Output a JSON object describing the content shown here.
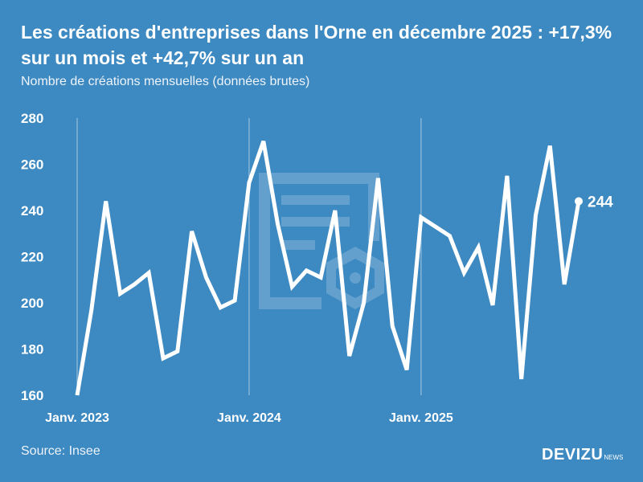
{
  "header": {
    "title": "Les créations d'entreprises dans l'Orne en décembre 2025 : +17,3% sur un mois et +42,7% sur un an",
    "subtitle": "Nombre de créations mensuelles (données brutes)"
  },
  "footer": {
    "source": "Source: Insee",
    "brand": "DEVIZU",
    "brand_suffix": "NEWS"
  },
  "colors": {
    "background": "#3d89c1",
    "line": "#ffffff",
    "gridline": "#a9cbe4"
  },
  "chart_data": {
    "type": "line",
    "title": "Les créations d'entreprises dans l'Orne en décembre 2025 : +17,3% sur un mois et +42,7% sur un an",
    "subtitle": "Nombre de créations mensuelles (données brutes)",
    "xlabel": "",
    "ylabel": "",
    "ylim": [
      160,
      280
    ],
    "yticks": [
      160,
      180,
      200,
      220,
      240,
      260,
      280
    ],
    "xticks": [
      {
        "index": 0,
        "label": "Janv. 2023"
      },
      {
        "index": 12,
        "label": "Janv. 2024"
      },
      {
        "index": 24,
        "label": "Janv. 2025"
      }
    ],
    "x": [
      "2023-01",
      "2023-02",
      "2023-03",
      "2023-04",
      "2023-05",
      "2023-06",
      "2023-07",
      "2023-08",
      "2023-09",
      "2023-10",
      "2023-11",
      "2023-12",
      "2024-01",
      "2024-02",
      "2024-03",
      "2024-04",
      "2024-05",
      "2024-06",
      "2024-07",
      "2024-08",
      "2024-09",
      "2024-10",
      "2024-11",
      "2024-12",
      "2025-01",
      "2025-02",
      "2025-03",
      "2025-04",
      "2025-05",
      "2025-06",
      "2025-07",
      "2025-08",
      "2025-09",
      "2025-10",
      "2025-11",
      "2025-12"
    ],
    "values": [
      160,
      197,
      244,
      204,
      208,
      213,
      176,
      179,
      231,
      211,
      198,
      201,
      252,
      270,
      234,
      207,
      214,
      211,
      240,
      177,
      200,
      254,
      190,
      171,
      237,
      233,
      229,
      213,
      224,
      199,
      255,
      167,
      238,
      268,
      208,
      244
    ],
    "last_label": "244",
    "grid": "vertical lines at each January",
    "legend": "none"
  }
}
